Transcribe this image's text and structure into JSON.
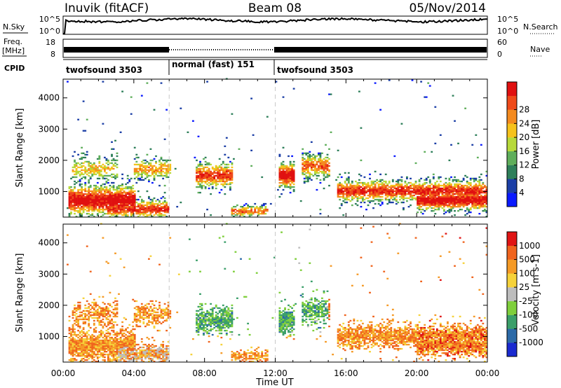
{
  "header": {
    "station": "Inuvik (fitACF)",
    "beam": "Beam 08",
    "date": "05/Nov/2014"
  },
  "top_strips": {
    "nsky_label": "N.Sky",
    "nsky_ticks": [
      "10^5",
      "10^0"
    ],
    "nsearch_label": "N.Search",
    "nsearch_ticks": [
      "10^5",
      "10^0"
    ],
    "freq_label_1": "Freq.",
    "freq_label_2": "[MHz]",
    "freq_ticks": [
      "18",
      "8"
    ],
    "nave_label": "Nave",
    "nave_ticks": [
      "60",
      "0"
    ],
    "cpid_label": "CPID",
    "cpid_segments": [
      {
        "label": "twofsound 3503",
        "start_h": 0,
        "end_h": 6
      },
      {
        "label": "normal (fast) 151",
        "start_h": 6,
        "end_h": 12
      },
      {
        "label": "twofsound 3503",
        "start_h": 12,
        "end_h": 24
      }
    ]
  },
  "colorbars": {
    "power": {
      "title": "Power [dB]",
      "ticks": [
        "4",
        "8",
        "12",
        "16",
        "20",
        "24",
        "28"
      ],
      "colors": [
        "#0a1aff",
        "#1c3fa6",
        "#2e7f5a",
        "#5fae5b",
        "#b7d93a",
        "#f6c21c",
        "#f48a1f",
        "#ef4a1a",
        "#e01010"
      ]
    },
    "velocity": {
      "title": "Velocity [m s-1]",
      "ticks": [
        "1000",
        "500",
        "100",
        "25",
        "-25",
        "-100",
        "-500",
        "-1000"
      ],
      "colors": [
        "#1a2ad0",
        "#2c6aa8",
        "#3b9f6a",
        "#7fcf3c",
        "#bdbdbd",
        "#f6d23a",
        "#f59a26",
        "#f0641e",
        "#e01414"
      ]
    }
  },
  "chart_data": [
    {
      "type": "heatmap",
      "title": "Power [dB]",
      "xlabel": "",
      "ylabel": "Slant Range [km]",
      "x_ticks": [
        "00:00",
        "04:00",
        "08:00",
        "12:00",
        "16:00",
        "20:00",
        "00:00"
      ],
      "y_ticks": [
        1000,
        2000,
        3000,
        4000
      ],
      "xlim_hours": [
        0,
        24
      ],
      "ylim_km": [
        180,
        4600
      ]
    },
    {
      "type": "heatmap",
      "title": "Velocity [m s-1]",
      "xlabel": "Time UT",
      "ylabel": "Slant Range [km]",
      "x_ticks": [
        "00:00",
        "04:00",
        "08:00",
        "12:00",
        "16:00",
        "20:00",
        "00:00"
      ],
      "y_ticks": [
        1000,
        2000,
        3000,
        4000
      ],
      "xlim_hours": [
        0,
        24
      ],
      "ylim_km": [
        180,
        4600
      ]
    }
  ]
}
